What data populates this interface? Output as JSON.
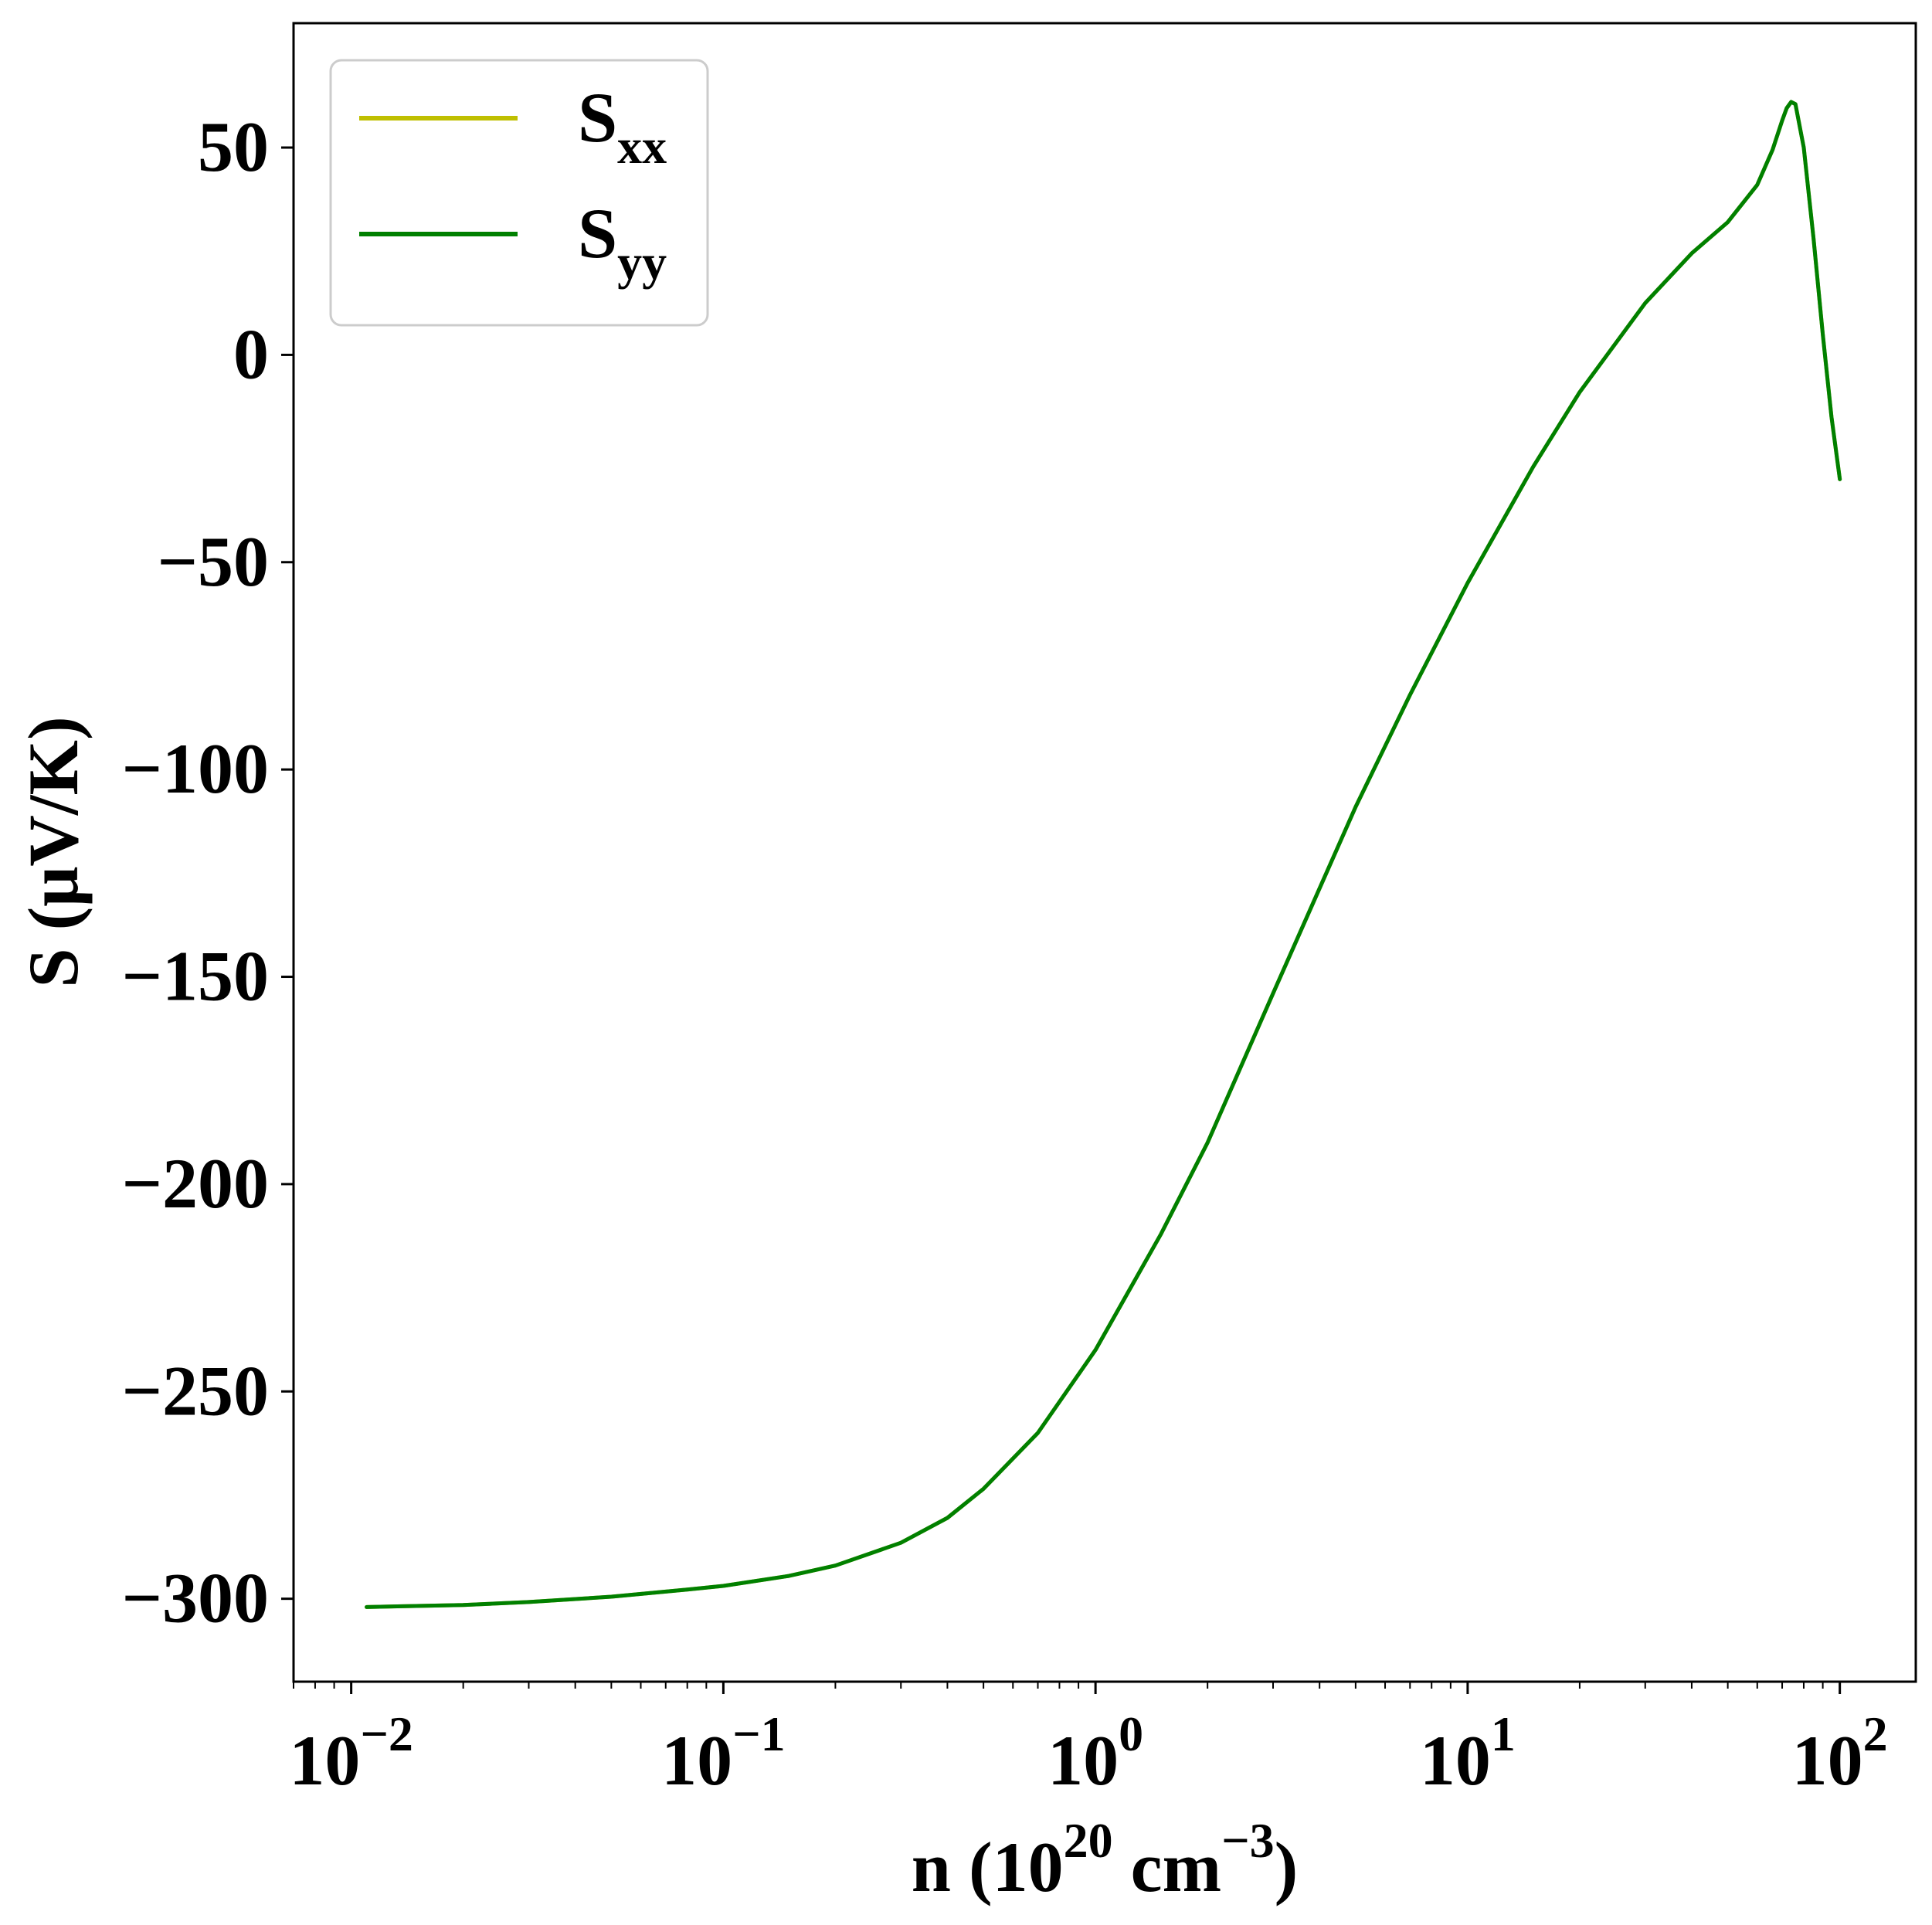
{
  "chart_data": {
    "type": "line",
    "xlabel": {
      "base": "n (10",
      "sup1": "20",
      "mid": " cm",
      "sup2": "−3",
      "end": ")"
    },
    "ylabel": "S (μV/K)",
    "xscale": "log",
    "xlim": [
      0.007,
      160
    ],
    "ylim": [
      -320,
      80
    ],
    "grid": false,
    "legend_position": "top-left",
    "x_ticks": [
      {
        "value": 0.01,
        "base": "10",
        "exp": "−2"
      },
      {
        "value": 0.1,
        "base": "10",
        "exp": "−1"
      },
      {
        "value": 1,
        "base": "10",
        "exp": "0"
      },
      {
        "value": 10,
        "base": "10",
        "exp": "1"
      },
      {
        "value": 100,
        "base": "10",
        "exp": "2"
      }
    ],
    "y_ticks": [
      {
        "value": 50,
        "label": "50"
      },
      {
        "value": 0,
        "label": "0"
      },
      {
        "value": -50,
        "label": "−50"
      },
      {
        "value": -100,
        "label": "−100"
      },
      {
        "value": -150,
        "label": "−150"
      },
      {
        "value": -200,
        "label": "−200"
      },
      {
        "value": -250,
        "label": "−250"
      },
      {
        "value": -300,
        "label": "−300"
      }
    ],
    "x": [
      0.011,
      0.02,
      0.03,
      0.05,
      0.08,
      0.1,
      0.15,
      0.2,
      0.3,
      0.4,
      0.5,
      0.7,
      1.0,
      1.5,
      2.0,
      3.0,
      5.0,
      7.0,
      10,
      15,
      20,
      30,
      40,
      50,
      60,
      66,
      70,
      72,
      74,
      76,
      80,
      85,
      90,
      95,
      100
    ],
    "series": [
      {
        "name": "S",
        "sub": "xx",
        "color": "#bfbf00",
        "values": [
          -302,
          -301.5,
          -300.8,
          -299.5,
          -297.8,
          -296.9,
          -294.5,
          -292,
          -286.5,
          -280.5,
          -273.5,
          -260,
          -240,
          -212,
          -190,
          -154,
          -109,
          -82,
          -55,
          -27,
          -9,
          12.5,
          24.5,
          32,
          41,
          49.5,
          56.5,
          59.5,
          61,
          60.5,
          50,
          28,
          5,
          -15,
          -30
        ]
      },
      {
        "name": "S",
        "sub": "yy",
        "color": "#008000",
        "values": [
          -302,
          -301.5,
          -300.8,
          -299.5,
          -297.8,
          -296.9,
          -294.5,
          -292,
          -286.5,
          -280.5,
          -273.5,
          -260,
          -240,
          -212,
          -190,
          -154,
          -109,
          -82,
          -55,
          -27,
          -9,
          12.5,
          24.5,
          32,
          41,
          49.5,
          56.5,
          59.5,
          61,
          60.5,
          50,
          28,
          5,
          -15,
          -30
        ]
      }
    ]
  }
}
